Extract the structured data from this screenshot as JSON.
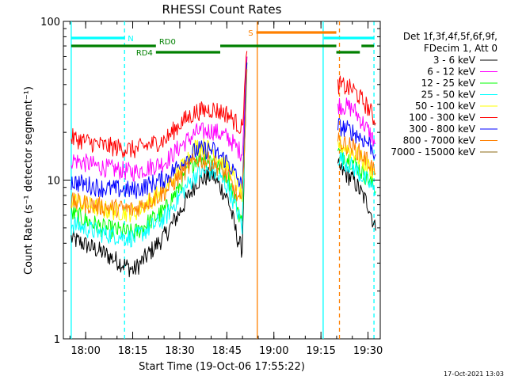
{
  "chart_data": {
    "type": "line",
    "title": "RHESSI Count Rates",
    "xlabel": "Start Time (19-Oct-06 17:55:22)",
    "ylabel": "Count Rate (s⁻¹ detector segment⁻¹)",
    "yscale": "log",
    "ylim": [
      1,
      100
    ],
    "xlim_minutes": [
      17.0,
      36.0
    ],
    "x_tick_labels": [
      "18:00",
      "18:15",
      "18:30",
      "18:45",
      "19:00",
      "19:15",
      "19:30"
    ],
    "x_tick_minutes": [
      4.6,
      19.6,
      34.6,
      49.6,
      64.6,
      79.6,
      94.6
    ],
    "y_tick_labels": [
      "1",
      "10",
      "100"
    ],
    "y_tick_values": [
      1,
      10,
      100
    ],
    "legend": {
      "header": "Det 1f,3f,4f,5f,6f,9f,",
      "subheader": "FDecim 1, Att 0",
      "placement": "right"
    },
    "series": [
      {
        "name": "3 - 6 keV",
        "color": "#000000",
        "x": [
          0,
          10,
          20,
          30,
          35,
          40,
          45,
          50,
          53,
          54.5,
          56,
          83,
          85,
          90,
          95,
          97
        ],
        "values": [
          4.3,
          3.5,
          2.7,
          4.5,
          6.5,
          9.8,
          10.8,
          7.6,
          4.3,
          3.6,
          60,
          null,
          12,
          10,
          6.8,
          4.8
        ]
      },
      {
        "name": "6 - 12 keV",
        "color": "#ff00ff",
        "x": [
          0,
          10,
          20,
          30,
          35,
          40,
          45,
          50,
          53,
          54.5,
          56,
          83,
          85,
          90,
          95,
          97
        ],
        "values": [
          13.5,
          12.0,
          11.2,
          13.0,
          16.5,
          20,
          20.5,
          18.5,
          15.8,
          14.8,
          60,
          null,
          30,
          28,
          20,
          17
        ]
      },
      {
        "name": "12 - 25 keV",
        "color": "#00ff00",
        "x": [
          0,
          10,
          20,
          30,
          35,
          40,
          45,
          50,
          53,
          54.5,
          56,
          83,
          85,
          90,
          95,
          97
        ],
        "values": [
          6.2,
          5.0,
          4.6,
          6.5,
          9.5,
          14,
          13.5,
          10.5,
          6.8,
          5.2,
          55,
          null,
          15,
          13,
          10,
          8.5
        ]
      },
      {
        "name": "25 - 50 keV",
        "color": "#00ffff",
        "x": [
          0,
          10,
          20,
          30,
          35,
          40,
          45,
          50,
          53,
          54.5,
          56,
          83,
          85,
          90,
          95,
          97
        ],
        "values": [
          5.3,
          4.6,
          4.3,
          5.8,
          8.2,
          11,
          11.5,
          9.0,
          6.3,
          5.0,
          50,
          null,
          14,
          12,
          9.5,
          8.2
        ]
      },
      {
        "name": "50 - 100 keV",
        "color": "#ffff00",
        "x": [
          0,
          10,
          20,
          30,
          35,
          40,
          45,
          50,
          53,
          54.5,
          56,
          83,
          85,
          90,
          95,
          97
        ],
        "values": [
          7.5,
          6.5,
          6.2,
          8.8,
          12,
          16.5,
          15.5,
          12,
          9.3,
          7.8,
          52,
          null,
          17,
          15,
          12,
          11
        ]
      },
      {
        "name": "100 - 300 keV",
        "color": "#ff0000",
        "x": [
          0,
          10,
          20,
          30,
          35,
          40,
          45,
          50,
          53,
          54.5,
          56,
          83,
          85,
          90,
          95,
          97
        ],
        "values": [
          18.5,
          16.5,
          15.5,
          18,
          23,
          27,
          28,
          26,
          22.5,
          21,
          65,
          null,
          40,
          37,
          28,
          23
        ]
      },
      {
        "name": "300 - 800 keV",
        "color": "#0000ff",
        "x": [
          0,
          10,
          20,
          30,
          35,
          40,
          45,
          50,
          53,
          54.5,
          56,
          83,
          85,
          90,
          95,
          97
        ],
        "values": [
          9.8,
          8.9,
          8.6,
          10.2,
          12.8,
          15.5,
          15.5,
          13,
          10.2,
          9.0,
          55,
          null,
          22,
          20,
          17,
          14.5
        ]
      },
      {
        "name": "800 - 7000 keV",
        "color": "#ff8000",
        "x": [
          0,
          10,
          20,
          30,
          35,
          40,
          45,
          50,
          53,
          54.5,
          56,
          83,
          85,
          90,
          95,
          97
        ],
        "values": [
          7.3,
          6.8,
          6.5,
          8.5,
          10.8,
          13.5,
          13,
          10.5,
          7.8,
          7.0,
          50,
          null,
          17.5,
          16,
          13,
          11
        ]
      },
      {
        "name": "7000 - 15000 keV",
        "color": "#8b6914",
        "x": [
          0,
          10,
          20,
          30,
          35,
          40,
          45,
          50,
          53,
          54.5,
          56,
          83,
          85,
          90,
          95,
          97
        ],
        "values": [
          null,
          null,
          null,
          null,
          null,
          null,
          null,
          null,
          null,
          null,
          null,
          null,
          null,
          null,
          null,
          null
        ]
      }
    ],
    "annotations": {
      "flags": [
        {
          "label": "N",
          "color": "#00ffff",
          "x_start": 0,
          "x_end": 17.0,
          "level": "top",
          "text_side": "end"
        },
        {
          "label": "",
          "color": "#00ffff",
          "x_start": 80.5,
          "x_end": 96.5,
          "level": "top",
          "text_side": "end"
        },
        {
          "label": "S",
          "color": "#ff8000",
          "x_start": 59,
          "x_end": 84.5,
          "level": "top-upper",
          "text_side": "start"
        },
        {
          "label": "RD0",
          "color": "#008000",
          "x_start": 0,
          "x_end": 27,
          "level": "mid",
          "text_side": "end"
        },
        {
          "label": "",
          "color": "#008000",
          "x_start": 47.5,
          "x_end": 84.5,
          "level": "mid",
          "text_side": "end"
        },
        {
          "label": "",
          "color": "#008000",
          "x_start": 92.5,
          "x_end": 96.5,
          "level": "mid",
          "text_side": "end"
        },
        {
          "label": "RD4",
          "color": "#008000",
          "x_start": 27,
          "x_end": 47.5,
          "level": "low",
          "text_side": "start"
        },
        {
          "label": "",
          "color": "#008000",
          "x_start": 84.5,
          "x_end": 92,
          "level": "low",
          "text_side": "start"
        }
      ],
      "vlines": [
        {
          "x": 0,
          "color": "#00ffff",
          "style": "solid"
        },
        {
          "x": 17.0,
          "color": "#00ffff",
          "style": "dashed"
        },
        {
          "x": 59.3,
          "color": "#ff8000",
          "style": "solid"
        },
        {
          "x": 80.3,
          "color": "#00ffff",
          "style": "solid"
        },
        {
          "x": 85.5,
          "color": "#ff8000",
          "style": "dashed"
        },
        {
          "x": 96.5,
          "color": "#00ffff",
          "style": "dashed"
        }
      ]
    },
    "footer_stamp": "17-Oct-2021 13:03"
  }
}
